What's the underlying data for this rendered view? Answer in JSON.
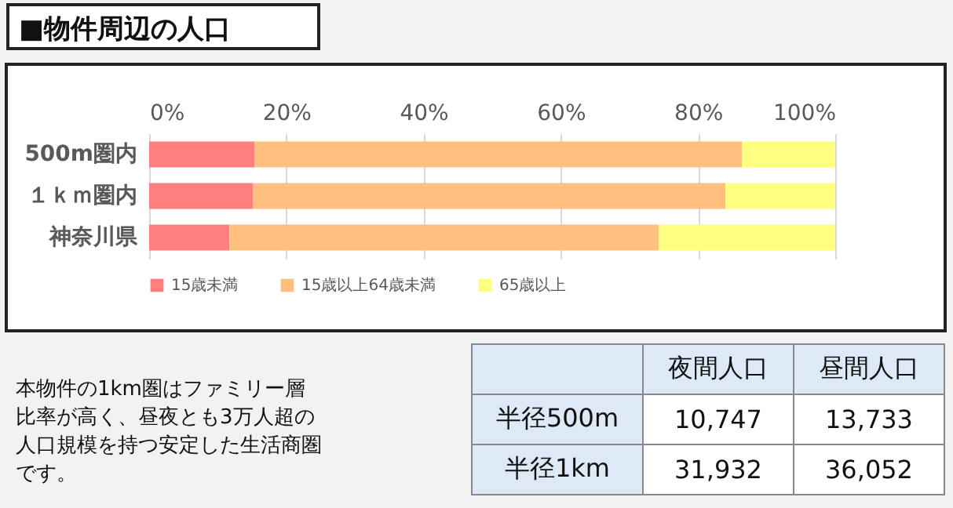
{
  "chart_data": [
    {
      "type": "bar",
      "title": "■物件周辺の人口",
      "orientation": "horizontal",
      "stacked": true,
      "categories": [
        "500m圏内",
        "１ｋｍ圏内",
        "神奈川県"
      ],
      "series": [
        {
          "name": "15歳未満",
          "color": "#ff7f7f",
          "values": [
            15.4,
            15.1,
            11.7
          ]
        },
        {
          "name": "15歳以上64歳未満",
          "color": "#ffbf7f",
          "values": [
            71.0,
            68.9,
            62.6
          ]
        },
        {
          "name": "65歳以上",
          "color": "#ffff7f",
          "values": [
            13.6,
            16.0,
            25.7
          ]
        }
      ],
      "xlim": [
        0,
        100
      ],
      "xticks": [
        {
          "value": 0,
          "label": "0%"
        },
        {
          "value": 20,
          "label": "20%"
        },
        {
          "value": 40,
          "label": "40%"
        },
        {
          "value": 60,
          "label": "60%"
        },
        {
          "value": 80,
          "label": "80%"
        },
        {
          "value": 100,
          "label": "100%"
        }
      ],
      "grid": "x",
      "legend": "bottom"
    },
    {
      "type": "other",
      "categories": [
        "夜間人口",
        "昼間人口"
      ],
      "y_categories": [
        "半径500m",
        "半径1km"
      ],
      "cell_labels": [
        [
          "10,747",
          "13,733"
        ],
        [
          "31,932",
          "36,052"
        ]
      ],
      "annotations": [
        "本物件の1km圏はファミリー層比率が高く、昼夜とも3万人超の人口規模を持つ安定した生活商圏です。"
      ]
    }
  ]
}
